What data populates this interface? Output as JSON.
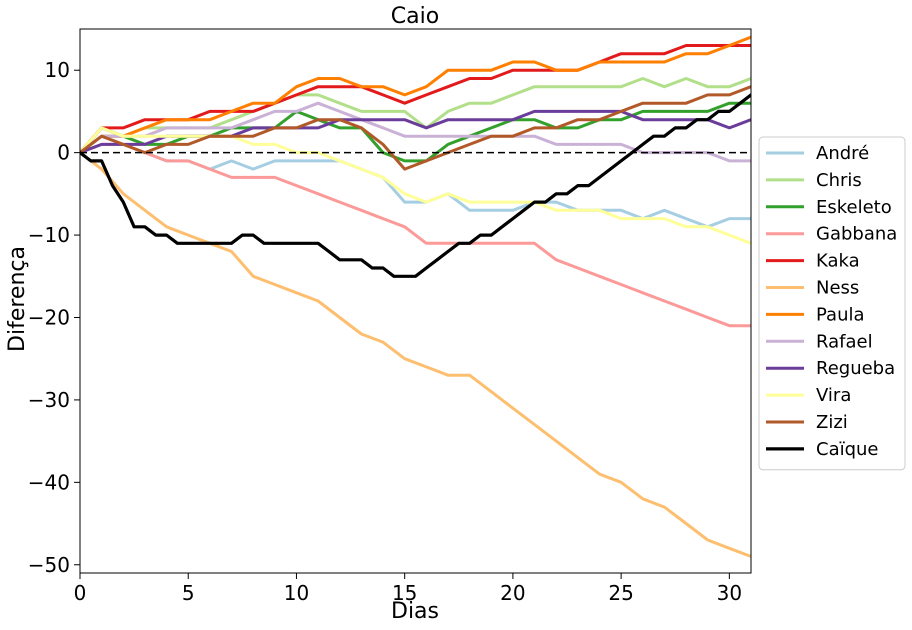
{
  "chart_data": {
    "type": "line",
    "title": "Caio",
    "xlabel": "Dias",
    "ylabel": "Diferença",
    "xlim": [
      0,
      31
    ],
    "ylim": [
      -51,
      15
    ],
    "xticks": [
      0,
      5,
      10,
      15,
      20,
      25,
      30
    ],
    "yticks": [
      10,
      0,
      -10,
      -20,
      -30,
      -40,
      -50
    ],
    "reference_line": {
      "y": 0,
      "style": "dashed",
      "color": "#000000"
    },
    "grid": false,
    "legend_placement": "right, outside plot",
    "series": [
      {
        "name": "André",
        "color": "#a6cee3",
        "x": [
          0,
          1,
          2,
          3,
          4,
          5,
          6,
          7,
          8,
          9,
          10,
          11,
          12,
          13,
          14,
          15,
          16,
          17,
          18,
          19,
          20,
          21,
          22,
          23,
          24,
          25,
          26,
          27,
          28,
          29,
          30,
          31
        ],
        "y": [
          0,
          2,
          1,
          0,
          -1,
          -1,
          -2,
          -1,
          -2,
          -1,
          -1,
          -1,
          -1,
          -2,
          -3,
          -6,
          -6,
          -5,
          -7,
          -7,
          -7,
          -6,
          -6,
          -7,
          -7,
          -7,
          -8,
          -7,
          -8,
          -9,
          -8,
          -8
        ]
      },
      {
        "name": "Chris",
        "color": "#b2df8a",
        "x": [
          0,
          1,
          2,
          3,
          4,
          5,
          6,
          7,
          8,
          9,
          10,
          11,
          12,
          13,
          14,
          15,
          16,
          17,
          18,
          19,
          20,
          21,
          22,
          23,
          24,
          25,
          26,
          27,
          28,
          29,
          30,
          31
        ],
        "y": [
          0,
          2,
          2,
          3,
          3,
          3,
          3,
          4,
          5,
          6,
          7,
          7,
          6,
          5,
          5,
          5,
          3,
          5,
          6,
          6,
          7,
          8,
          8,
          8,
          8,
          8,
          9,
          8,
          9,
          8,
          8,
          9
        ]
      },
      {
        "name": "Eskeleto",
        "color": "#33a02c",
        "x": [
          0,
          1,
          2,
          3,
          4,
          5,
          6,
          7,
          8,
          9,
          10,
          11,
          12,
          13,
          14,
          15,
          16,
          17,
          18,
          19,
          20,
          21,
          22,
          23,
          24,
          25,
          26,
          27,
          28,
          29,
          30,
          31
        ],
        "y": [
          0,
          3,
          2,
          1,
          1,
          2,
          2,
          3,
          3,
          3,
          5,
          4,
          3,
          3,
          0,
          -1,
          -1,
          1,
          2,
          3,
          4,
          4,
          3,
          3,
          4,
          4,
          5,
          5,
          5,
          5,
          6,
          6
        ]
      },
      {
        "name": "Gabbana",
        "color": "#fb9a99",
        "x": [
          0,
          1,
          2,
          3,
          4,
          5,
          6,
          7,
          8,
          9,
          10,
          11,
          12,
          13,
          14,
          15,
          16,
          17,
          18,
          19,
          20,
          21,
          22,
          23,
          24,
          25,
          26,
          27,
          28,
          29,
          30,
          31
        ],
        "y": [
          0,
          1,
          1,
          0,
          -1,
          -1,
          -2,
          -3,
          -3,
          -3,
          -4,
          -5,
          -6,
          -7,
          -8,
          -9,
          -11,
          -11,
          -11,
          -11,
          -11,
          -11,
          -13,
          -14,
          -15,
          -16,
          -17,
          -18,
          -19,
          -20,
          -21,
          -21
        ]
      },
      {
        "name": "Kaka",
        "color": "#e31a1c",
        "x": [
          0,
          1,
          2,
          3,
          4,
          5,
          6,
          7,
          8,
          9,
          10,
          11,
          12,
          13,
          14,
          15,
          16,
          17,
          18,
          19,
          20,
          21,
          22,
          23,
          24,
          25,
          26,
          27,
          28,
          29,
          30,
          31
        ],
        "y": [
          0,
          3,
          3,
          4,
          4,
          4,
          5,
          5,
          5,
          6,
          7,
          8,
          8,
          8,
          7,
          6,
          7,
          8,
          9,
          9,
          10,
          10,
          10,
          10,
          11,
          12,
          12,
          12,
          13,
          13,
          13,
          13
        ]
      },
      {
        "name": "Ness",
        "color": "#fdbf6f",
        "x": [
          0,
          1,
          2,
          3,
          4,
          5,
          6,
          7,
          8,
          9,
          10,
          11,
          12,
          13,
          14,
          15,
          16,
          17,
          18,
          19,
          20,
          21,
          22,
          23,
          24,
          25,
          26,
          27,
          28,
          29,
          30,
          31
        ],
        "y": [
          0,
          -2,
          -5,
          -7,
          -9,
          -10,
          -11,
          -12,
          -15,
          -16,
          -17,
          -18,
          -20,
          -22,
          -23,
          -25,
          -26,
          -27,
          -27,
          -29,
          -31,
          -33,
          -35,
          -37,
          -39,
          -40,
          -42,
          -43,
          -45,
          -47,
          -48,
          -49
        ]
      },
      {
        "name": "Paula",
        "color": "#ff7f00",
        "x": [
          0,
          1,
          2,
          3,
          4,
          5,
          6,
          7,
          8,
          9,
          10,
          11,
          12,
          13,
          14,
          15,
          16,
          17,
          18,
          19,
          20,
          21,
          22,
          23,
          24,
          25,
          26,
          27,
          28,
          29,
          30,
          31
        ],
        "y": [
          0,
          2,
          2,
          3,
          4,
          4,
          4,
          5,
          6,
          6,
          8,
          9,
          9,
          8,
          8,
          7,
          8,
          10,
          10,
          10,
          11,
          11,
          10,
          10,
          11,
          11,
          11,
          11,
          12,
          12,
          13,
          14
        ]
      },
      {
        "name": "Rafael",
        "color": "#cab2d6",
        "x": [
          0,
          1,
          2,
          3,
          4,
          5,
          6,
          7,
          8,
          9,
          10,
          11,
          12,
          13,
          14,
          15,
          16,
          17,
          18,
          19,
          20,
          21,
          22,
          23,
          24,
          25,
          26,
          27,
          28,
          29,
          30,
          31
        ],
        "y": [
          0,
          2,
          2,
          2,
          3,
          3,
          3,
          3,
          4,
          5,
          5,
          6,
          5,
          4,
          3,
          2,
          2,
          2,
          2,
          2,
          2,
          2,
          1,
          1,
          1,
          1,
          0,
          0,
          0,
          0,
          -1,
          -1
        ]
      },
      {
        "name": "Regueba",
        "color": "#6a3d9a",
        "x": [
          0,
          1,
          2,
          3,
          4,
          5,
          6,
          7,
          8,
          9,
          10,
          11,
          12,
          13,
          14,
          15,
          16,
          17,
          18,
          19,
          20,
          21,
          22,
          23,
          24,
          25,
          26,
          27,
          28,
          29,
          30,
          31
        ],
        "y": [
          0,
          1,
          1,
          1,
          2,
          2,
          2,
          2,
          3,
          3,
          3,
          3,
          4,
          4,
          4,
          4,
          3,
          4,
          4,
          4,
          4,
          5,
          5,
          5,
          5,
          5,
          4,
          4,
          4,
          4,
          3,
          4
        ]
      },
      {
        "name": "Vira",
        "color": "#ffff99",
        "x": [
          0,
          1,
          2,
          3,
          4,
          5,
          6,
          7,
          8,
          9,
          10,
          11,
          12,
          13,
          14,
          15,
          16,
          17,
          18,
          19,
          20,
          21,
          22,
          23,
          24,
          25,
          26,
          27,
          28,
          29,
          30,
          31
        ],
        "y": [
          0,
          3,
          2,
          2,
          2,
          2,
          2,
          2,
          1,
          1,
          0,
          0,
          -1,
          -2,
          -3,
          -5,
          -6,
          -5,
          -6,
          -6,
          -6,
          -6,
          -7,
          -7,
          -7,
          -8,
          -8,
          -8,
          -9,
          -9,
          -10,
          -11
        ]
      },
      {
        "name": "Zizi",
        "color": "#b15928",
        "x": [
          0,
          1,
          2,
          3,
          4,
          5,
          6,
          7,
          8,
          9,
          10,
          11,
          12,
          13,
          14,
          15,
          16,
          17,
          18,
          19,
          20,
          21,
          22,
          23,
          24,
          25,
          26,
          27,
          28,
          29,
          30,
          31
        ],
        "y": [
          0,
          2,
          1,
          0,
          1,
          1,
          2,
          2,
          2,
          3,
          3,
          4,
          4,
          3,
          1,
          -2,
          -1,
          0,
          1,
          2,
          2,
          3,
          3,
          4,
          4,
          5,
          6,
          6,
          6,
          7,
          7,
          8
        ]
      },
      {
        "name": "Caïque",
        "color": "#000000",
        "x": [
          0,
          0.5,
          1,
          1.5,
          2,
          2.5,
          3,
          3.5,
          4,
          4.5,
          5,
          5.5,
          6,
          6.5,
          7,
          7.5,
          8,
          8.5,
          9,
          9.5,
          10,
          10.5,
          11,
          11.5,
          12,
          12.5,
          13,
          13.5,
          14,
          14.5,
          15,
          15.5,
          16,
          16.5,
          17,
          17.5,
          18,
          18.5,
          19,
          19.5,
          20,
          20.5,
          21,
          21.5,
          22,
          22.5,
          23,
          23.5,
          24,
          24.5,
          25,
          25.5,
          26,
          26.5,
          27,
          27.5,
          28,
          28.5,
          29,
          29.5,
          30,
          30.5,
          31
        ],
        "y": [
          0,
          -1,
          -1,
          -4,
          -6,
          -9,
          -9,
          -10,
          -10,
          -11,
          -11,
          -11,
          -11,
          -11,
          -11,
          -10,
          -10,
          -11,
          -11,
          -11,
          -11,
          -11,
          -11,
          -12,
          -13,
          -13,
          -13,
          -14,
          -14,
          -15,
          -15,
          -15,
          -14,
          -13,
          -12,
          -11,
          -11,
          -10,
          -10,
          -9,
          -8,
          -7,
          -6,
          -6,
          -5,
          -5,
          -4,
          -4,
          -3,
          -2,
          -1,
          0,
          1,
          2,
          2,
          3,
          3,
          4,
          4,
          5,
          5,
          6,
          7
        ]
      }
    ]
  }
}
